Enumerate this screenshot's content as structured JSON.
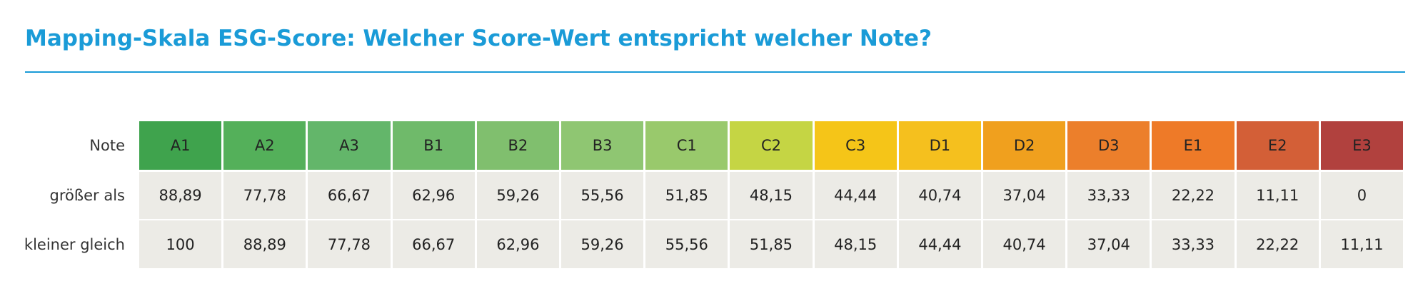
{
  "header": {
    "title": "Mapping-Skala ESG-Score: Welcher Score-Wert entspricht welcher Note?"
  },
  "table": {
    "row_labels": [
      "Note",
      "größer als",
      "kleiner gleich"
    ],
    "columns": [
      "A1",
      "A2",
      "A3",
      "B1",
      "B2",
      "B3",
      "C1",
      "C2",
      "C3",
      "D1",
      "D2",
      "D3",
      "E1",
      "E2",
      "E3"
    ],
    "column_colors": [
      "#3fa34d",
      "#54b05a",
      "#63b66a",
      "#6fba6a",
      "#80bf6e",
      "#8fc672",
      "#99c96c",
      "#c5d544",
      "#f5c518",
      "#f5c01e",
      "#f0a01e",
      "#ec7f2b",
      "#ee7a28",
      "#d35f37",
      "#b1413e"
    ],
    "rows": [
      [
        "88,89",
        "77,78",
        "66,67",
        "62,96",
        "59,26",
        "55,56",
        "51,85",
        "48,15",
        "44,44",
        "40,74",
        "37,04",
        "33,33",
        "22,22",
        "11,11",
        "0"
      ],
      [
        "100",
        "88,89",
        "77,78",
        "66,67",
        "62,96",
        "59,26",
        "55,56",
        "51,85",
        "48,15",
        "44,44",
        "40,74",
        "37,04",
        "33,33",
        "22,22",
        "11,11"
      ]
    ]
  }
}
